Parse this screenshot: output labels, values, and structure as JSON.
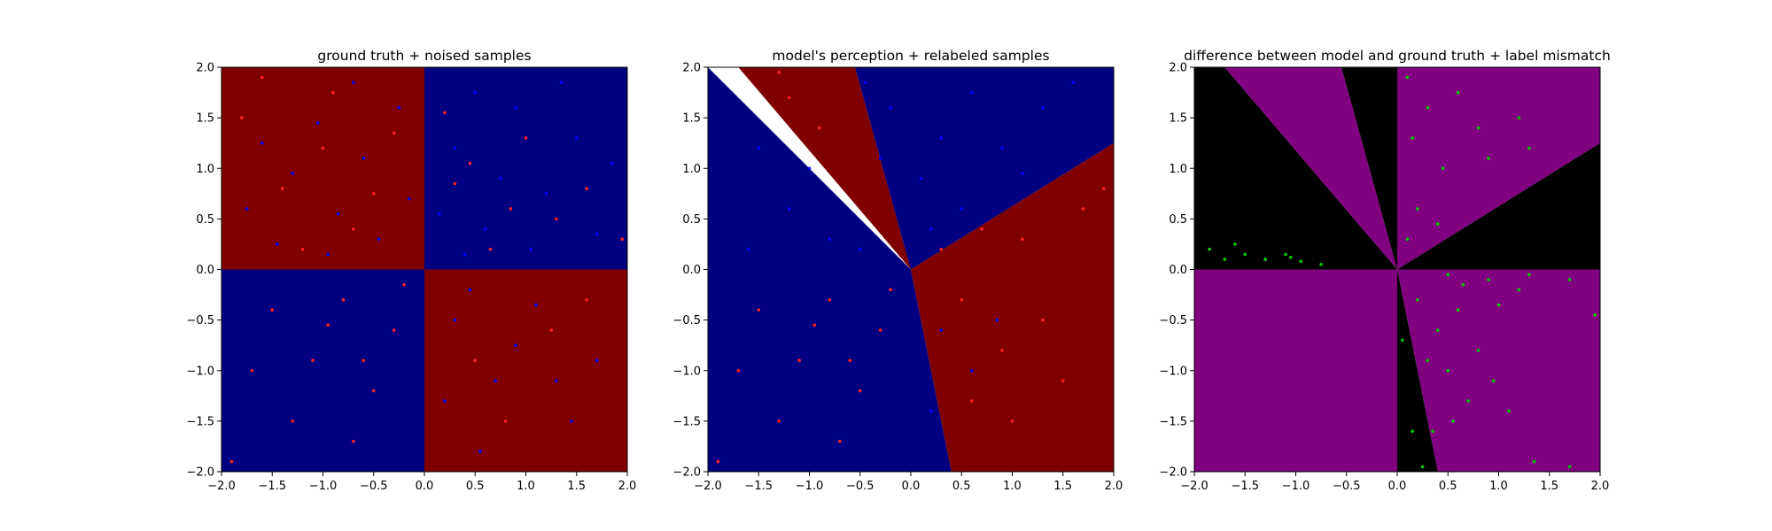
{
  "chart_data": [
    {
      "type": "scatter",
      "title": "ground truth + noised samples",
      "xlim": [
        -2.0,
        2.0
      ],
      "ylim": [
        -2.0,
        2.0
      ],
      "xticks": [
        "−2.0",
        "−1.5",
        "−1.0",
        "−0.5",
        "0.0",
        "0.5",
        "1.0",
        "1.5",
        "2.0"
      ],
      "yticks": [
        "−2.0",
        "−1.5",
        "−1.0",
        "−0.5",
        "0.0",
        "0.5",
        "1.0",
        "1.5",
        "2.0"
      ],
      "grid": false,
      "background_regions": [
        {
          "x": [
            -2.0,
            0.0
          ],
          "y": [
            0.0,
            2.0
          ],
          "color": "#800000"
        },
        {
          "x": [
            0.0,
            2.0
          ],
          "y": [
            0.0,
            2.0
          ],
          "color": "#000080"
        },
        {
          "x": [
            -2.0,
            0.0
          ],
          "y": [
            -2.0,
            0.0
          ],
          "color": "#000080"
        },
        {
          "x": [
            0.0,
            2.0
          ],
          "y": [
            -2.0,
            0.0
          ],
          "color": "#800000"
        }
      ],
      "series": [
        {
          "color": "#0000ff",
          "points": [
            [
              -1.6,
              1.25
            ],
            [
              -1.3,
              0.95
            ],
            [
              -1.05,
              1.45
            ],
            [
              -0.85,
              0.55
            ],
            [
              -0.6,
              1.1
            ],
            [
              -0.45,
              0.3
            ],
            [
              -0.25,
              1.6
            ],
            [
              -1.45,
              0.25
            ],
            [
              -0.95,
              0.15
            ],
            [
              -0.15,
              0.7
            ],
            [
              -1.75,
              0.6
            ],
            [
              -0.7,
              1.85
            ],
            [
              0.3,
              1.2
            ],
            [
              0.6,
              0.4
            ],
            [
              0.9,
              1.6
            ],
            [
              1.2,
              0.75
            ],
            [
              1.5,
              1.3
            ],
            [
              0.4,
              0.15
            ],
            [
              1.7,
              0.35
            ],
            [
              0.75,
              0.9
            ],
            [
              1.35,
              1.85
            ],
            [
              0.15,
              0.55
            ],
            [
              1.05,
              0.2
            ],
            [
              0.5,
              1.75
            ],
            [
              1.85,
              1.05
            ],
            [
              0.3,
              -0.5
            ],
            [
              0.7,
              -1.1
            ],
            [
              1.1,
              -0.35
            ],
            [
              1.45,
              -1.5
            ],
            [
              0.55,
              -1.8
            ],
            [
              0.9,
              -0.75
            ],
            [
              1.7,
              -0.9
            ],
            [
              0.2,
              -1.3
            ],
            [
              1.3,
              -1.1
            ],
            [
              0.45,
              -0.2
            ]
          ]
        },
        {
          "color": "#ff2020",
          "points": [
            [
              -1.5,
              -0.4
            ],
            [
              -1.1,
              -0.9
            ],
            [
              -0.8,
              -0.3
            ],
            [
              -0.5,
              -1.2
            ],
            [
              -0.3,
              -0.6
            ],
            [
              -1.3,
              -1.5
            ],
            [
              -0.7,
              -1.7
            ],
            [
              -0.95,
              -0.55
            ],
            [
              -0.2,
              -0.15
            ],
            [
              -1.7,
              -1.0
            ],
            [
              -0.6,
              -0.9
            ],
            [
              -1.9,
              -1.9
            ],
            [
              0.3,
              0.85
            ],
            [
              0.65,
              0.2
            ],
            [
              1.0,
              1.3
            ],
            [
              1.3,
              0.5
            ],
            [
              0.2,
              1.55
            ],
            [
              1.6,
              0.8
            ],
            [
              0.85,
              0.6
            ],
            [
              1.95,
              0.3
            ],
            [
              0.45,
              1.05
            ],
            [
              -1.4,
              0.8
            ],
            [
              -0.7,
              0.4
            ],
            [
              -1.0,
              1.2
            ],
            [
              -0.3,
              1.35
            ],
            [
              -1.2,
              0.2
            ],
            [
              -0.5,
              0.75
            ],
            [
              -1.8,
              1.5
            ],
            [
              -0.9,
              1.75
            ],
            [
              0.5,
              -0.9
            ],
            [
              1.25,
              -0.6
            ],
            [
              0.8,
              -1.5
            ],
            [
              1.6,
              -0.3
            ],
            [
              -1.6,
              1.9
            ]
          ]
        }
      ]
    },
    {
      "type": "scatter",
      "title": "model's perception + relabeled samples",
      "xlim": [
        -2.0,
        2.0
      ],
      "ylim": [
        -2.0,
        2.0
      ],
      "xticks": [
        "−2.0",
        "−1.5",
        "−1.0",
        "−0.5",
        "0.0",
        "0.5",
        "1.0",
        "1.5",
        "2.0"
      ],
      "yticks": [
        "−2.0",
        "−1.5",
        "−1.0",
        "−0.5",
        "0.0",
        "0.5",
        "1.0",
        "1.5",
        "2.0"
      ],
      "grid": false,
      "background_regions": [
        {
          "polygon": [
            [
              0,
              0
            ],
            [
              -2,
              2
            ],
            [
              -2,
              -2
            ],
            [
              0.4,
              -2
            ]
          ],
          "color": "#000080"
        },
        {
          "polygon": [
            [
              0,
              0
            ],
            [
              -1.7,
              2
            ],
            [
              -0.55,
              2
            ]
          ],
          "color": "#800000"
        },
        {
          "polygon": [
            [
              0,
              0
            ],
            [
              -0.55,
              2
            ],
            [
              2,
              2
            ],
            [
              2,
              1.25
            ]
          ],
          "color": "#000080"
        },
        {
          "polygon": [
            [
              0,
              0
            ],
            [
              2,
              1.25
            ],
            [
              2,
              -2
            ],
            [
              0.4,
              -2
            ]
          ],
          "color": "#800000"
        }
      ],
      "series": [
        {
          "color": "#0000ff",
          "points": [
            [
              -0.2,
              1.6
            ],
            [
              0.3,
              1.3
            ],
            [
              0.6,
              1.75
            ],
            [
              0.1,
              0.9
            ],
            [
              0.5,
              0.6
            ],
            [
              0.9,
              1.2
            ],
            [
              1.3,
              1.6
            ],
            [
              0.2,
              0.4
            ],
            [
              -0.3,
              1.1
            ],
            [
              1.1,
              0.95
            ],
            [
              1.6,
              1.85
            ],
            [
              -0.45,
              1.85
            ],
            [
              -1.5,
              1.2
            ],
            [
              -1.2,
              0.6
            ],
            [
              -0.8,
              0.3
            ],
            [
              -1.6,
              0.2
            ],
            [
              -1.0,
              1.0
            ],
            [
              -0.5,
              0.2
            ],
            [
              0.3,
              -0.6
            ],
            [
              0.6,
              -1.0
            ],
            [
              0.2,
              -1.4
            ],
            [
              0.85,
              -0.5
            ]
          ]
        },
        {
          "color": "#ff2020",
          "points": [
            [
              -1.5,
              -0.4
            ],
            [
              -1.1,
              -0.9
            ],
            [
              -0.8,
              -0.3
            ],
            [
              -0.5,
              -1.2
            ],
            [
              -0.3,
              -0.6
            ],
            [
              -1.3,
              -1.5
            ],
            [
              -0.7,
              -1.7
            ],
            [
              -0.95,
              -0.55
            ],
            [
              -1.7,
              -1.0
            ],
            [
              -0.6,
              -0.9
            ],
            [
              -1.9,
              -1.9
            ],
            [
              -0.2,
              -0.2
            ],
            [
              0.3,
              0.2
            ],
            [
              0.7,
              0.4
            ],
            [
              1.1,
              0.3
            ],
            [
              0.5,
              -0.3
            ],
            [
              0.9,
              -0.8
            ],
            [
              1.3,
              -0.5
            ],
            [
              0.6,
              -1.3
            ],
            [
              1.0,
              -1.5
            ],
            [
              1.5,
              -1.1
            ],
            [
              1.7,
              0.6
            ],
            [
              1.9,
              0.8
            ],
            [
              -1.2,
              1.7
            ],
            [
              -0.9,
              1.4
            ],
            [
              -1.3,
              1.95
            ]
          ]
        }
      ]
    },
    {
      "type": "scatter",
      "title": "difference between model and ground truth + label mismatch",
      "xlim": [
        -2.0,
        2.0
      ],
      "ylim": [
        -2.0,
        2.0
      ],
      "xticks": [
        "−2.0",
        "−1.5",
        "−1.0",
        "−0.5",
        "0.0",
        "0.5",
        "1.0",
        "1.5",
        "2.0"
      ],
      "yticks": [
        "−2.0",
        "−1.5",
        "−1.0",
        "−0.5",
        "0.0",
        "0.5",
        "1.0",
        "1.5",
        "2.0"
      ],
      "grid": false,
      "background_regions": [
        {
          "polygon": [
            [
              0,
              0
            ],
            [
              -2,
              0
            ],
            [
              -2,
              2
            ],
            [
              -1.7,
              2
            ]
          ],
          "color": "#000000"
        },
        {
          "polygon": [
            [
              0,
              0
            ],
            [
              -1.7,
              2
            ],
            [
              -0.55,
              2
            ]
          ],
          "color": "#800080"
        },
        {
          "polygon": [
            [
              0,
              0
            ],
            [
              -0.55,
              2
            ],
            [
              0,
              2
            ]
          ],
          "color": "#000000"
        },
        {
          "polygon": [
            [
              0,
              0
            ],
            [
              0,
              2
            ],
            [
              2,
              2
            ],
            [
              2,
              1.25
            ]
          ],
          "color": "#800080"
        },
        {
          "polygon": [
            [
              0,
              0
            ],
            [
              2,
              1.25
            ],
            [
              2,
              0
            ]
          ],
          "color": "#000000"
        },
        {
          "polygon": [
            [
              0,
              0
            ],
            [
              2,
              0
            ],
            [
              2,
              -2
            ],
            [
              0.4,
              -2
            ]
          ],
          "color": "#800080"
        },
        {
          "polygon": [
            [
              0,
              0
            ],
            [
              0.4,
              -2
            ],
            [
              0,
              -2
            ]
          ],
          "color": "#000000"
        },
        {
          "polygon": [
            [
              0,
              0
            ],
            [
              0,
              -2
            ],
            [
              -2,
              -2
            ],
            [
              -2,
              0
            ]
          ],
          "color": "#800080"
        }
      ],
      "series": [
        {
          "color": "#00cc00",
          "points": [
            [
              0.1,
              1.9
            ],
            [
              0.3,
              1.6
            ],
            [
              0.15,
              1.3
            ],
            [
              0.45,
              1.0
            ],
            [
              0.2,
              0.6
            ],
            [
              0.1,
              0.3
            ],
            [
              0.4,
              0.45
            ],
            [
              0.6,
              1.75
            ],
            [
              0.8,
              1.4
            ],
            [
              0.9,
              1.1
            ],
            [
              1.2,
              1.5
            ],
            [
              1.3,
              1.2
            ],
            [
              -1.85,
              0.2
            ],
            [
              -1.7,
              0.1
            ],
            [
              -1.5,
              0.15
            ],
            [
              -1.3,
              0.1
            ],
            [
              -1.1,
              0.15
            ],
            [
              -0.95,
              0.08
            ],
            [
              -0.75,
              0.05
            ],
            [
              -1.6,
              0.25
            ],
            [
              -1.05,
              0.12
            ],
            [
              0.5,
              -0.05
            ],
            [
              0.9,
              -0.1
            ],
            [
              1.3,
              -0.05
            ],
            [
              1.7,
              -0.1
            ],
            [
              1.95,
              -0.45
            ],
            [
              0.2,
              -0.3
            ],
            [
              0.3,
              -0.9
            ],
            [
              0.4,
              -0.6
            ],
            [
              0.5,
              -1.0
            ],
            [
              0.6,
              -0.4
            ],
            [
              0.7,
              -1.3
            ],
            [
              0.8,
              -0.8
            ],
            [
              0.95,
              -1.1
            ],
            [
              1.1,
              -1.4
            ],
            [
              1.0,
              -0.35
            ],
            [
              0.35,
              -1.6
            ],
            [
              0.15,
              -1.6
            ],
            [
              0.25,
              -1.95
            ],
            [
              1.35,
              -1.9
            ],
            [
              1.7,
              -1.95
            ],
            [
              1.2,
              -0.2
            ],
            [
              0.65,
              -0.15
            ],
            [
              0.05,
              -0.7
            ],
            [
              0.55,
              -1.5
            ]
          ]
        }
      ]
    }
  ]
}
